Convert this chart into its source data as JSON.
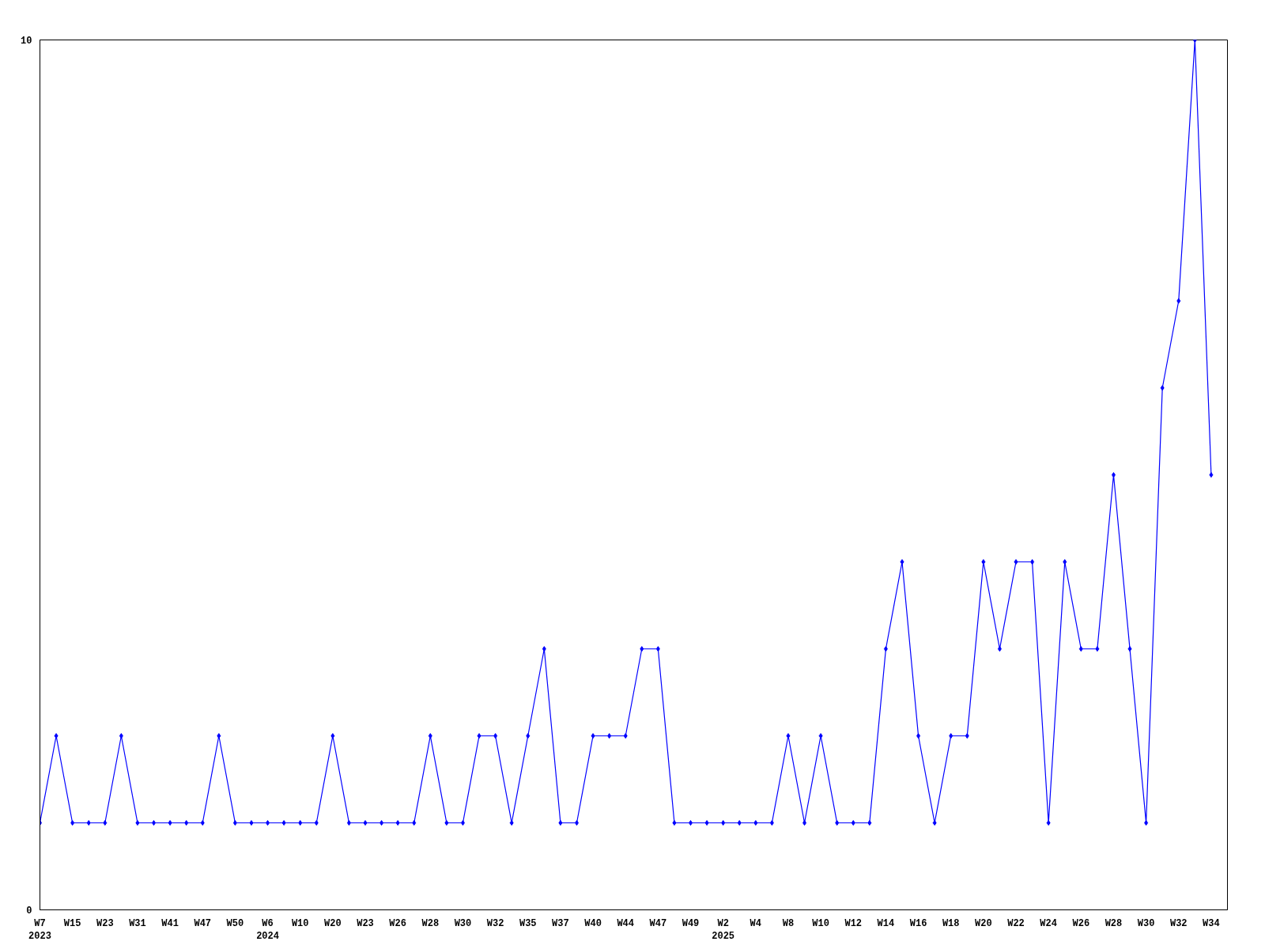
{
  "chart_data": {
    "type": "line",
    "categories": [
      "W7\n2023",
      null,
      "W15",
      null,
      "W23",
      null,
      "W31",
      null,
      "W41",
      null,
      "W47",
      null,
      "W50",
      null,
      "W6\n2024",
      null,
      "W10",
      null,
      "W20",
      null,
      "W23",
      null,
      "W26",
      null,
      "W28",
      null,
      "W30",
      null,
      "W32",
      null,
      "W35",
      null,
      "W37",
      null,
      "W40",
      null,
      "W44",
      null,
      "W47",
      null,
      "W49",
      null,
      "W2\n2025",
      null,
      "W4",
      null,
      "W8",
      null,
      "W10",
      null,
      "W12",
      null,
      "W14",
      null,
      "W16",
      null,
      "W18",
      null,
      "W20",
      null,
      "W22",
      null,
      "W24",
      null,
      "W26",
      null,
      "W28",
      null,
      "W30",
      null,
      "W32",
      null,
      "W34"
    ],
    "series": [
      {
        "color": "#0000ff",
        "values": [
          1,
          2,
          1,
          1,
          1,
          2,
          1,
          1,
          1,
          1,
          1,
          2,
          1,
          1,
          1,
          1,
          1,
          1,
          2,
          1,
          1,
          1,
          1,
          1,
          2,
          1,
          1,
          2,
          2,
          1,
          2,
          3,
          1,
          1,
          2,
          2,
          2,
          3,
          3,
          1,
          1,
          1,
          1,
          1,
          1,
          1,
          2,
          1,
          2,
          1,
          1,
          1,
          3,
          4,
          2,
          1,
          2,
          2,
          4,
          3,
          4,
          4,
          1,
          4,
          3,
          3,
          5,
          3,
          1,
          6,
          7,
          10,
          5
        ]
      }
    ],
    "ylim": [
      0,
      10
    ],
    "yticks": [
      0,
      10
    ],
    "grid": false,
    "marker": "diamond",
    "line_style": "solid"
  }
}
